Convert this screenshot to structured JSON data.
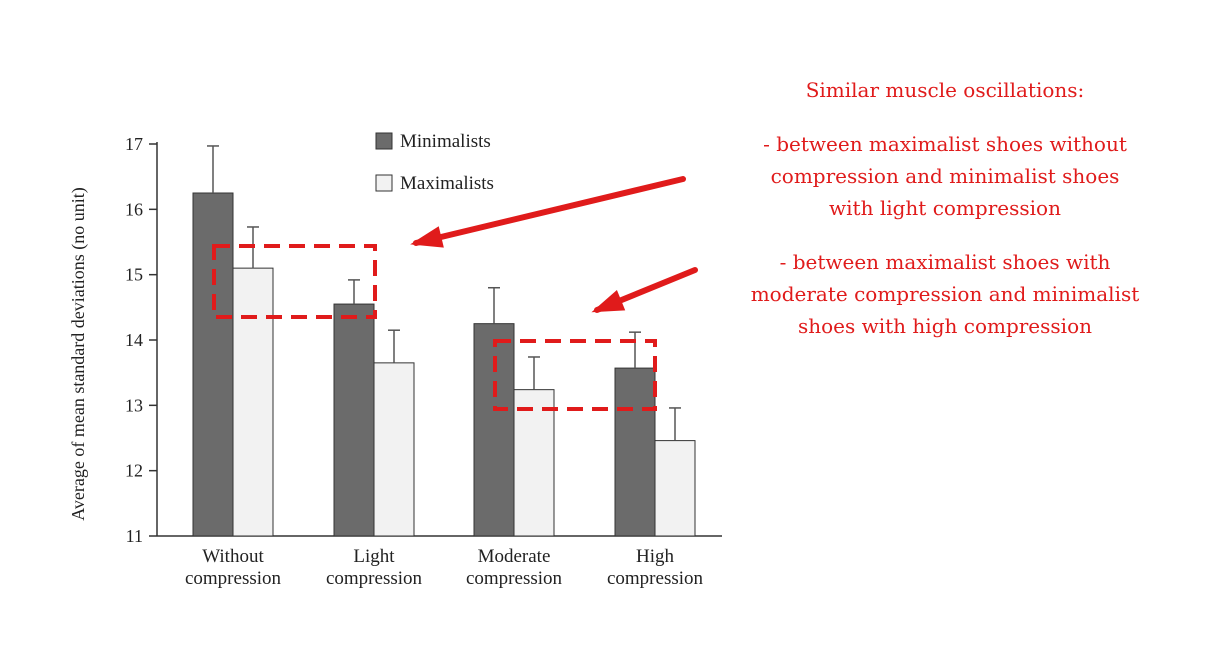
{
  "chart_data": {
    "type": "bar",
    "categories": [
      [
        "Without",
        "compression"
      ],
      [
        "Light",
        "compression"
      ],
      [
        "Moderate",
        "compression"
      ],
      [
        "High",
        "compression"
      ]
    ],
    "ylabel": "Average of mean standard deviations (no unit)",
    "ylim": [
      11,
      17
    ],
    "yticks": [
      11,
      12,
      13,
      14,
      15,
      16,
      17
    ],
    "grid": false,
    "legend_position": "top-center",
    "series": [
      {
        "name": "Minimalists",
        "color": "#6b6b6b",
        "values": [
          16.25,
          14.55,
          14.25,
          13.57
        ],
        "errors": [
          0.72,
          0.37,
          0.55,
          0.55
        ]
      },
      {
        "name": "Maximalists",
        "color": "#f2f2f2",
        "values": [
          15.1,
          13.65,
          13.24,
          12.46
        ],
        "errors": [
          0.63,
          0.5,
          0.5,
          0.5
        ]
      }
    ],
    "highlight_boxes_color": "#e01b1b",
    "arrow_color": "#e01b1b"
  },
  "annotation": {
    "title": "Similar muscle oscillations:",
    "items": [
      [
        "- between maximalist shoes without",
        "compression and minimalist shoes",
        "with light compression"
      ],
      [
        "- between maximalist shoes with",
        "moderate compression and minimalist",
        "shoes with high compression"
      ]
    ]
  }
}
